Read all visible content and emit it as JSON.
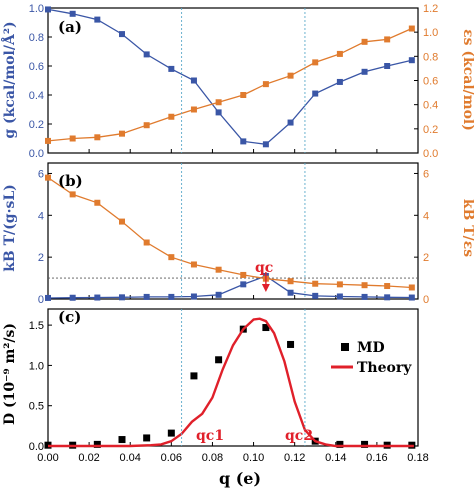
{
  "chart_data": [
    {
      "panel": "(a)",
      "type": "line",
      "x": [
        0.0,
        0.012,
        0.024,
        0.036,
        0.048,
        0.06,
        0.071,
        0.083,
        0.095,
        0.106,
        0.118,
        0.13,
        0.142,
        0.154,
        0.165,
        0.177
      ],
      "series": [
        {
          "axis": "left",
          "color": "#3a56a6",
          "marker": "square",
          "values": [
            0.99,
            0.96,
            0.92,
            0.82,
            0.68,
            0.58,
            0.5,
            0.28,
            0.08,
            0.06,
            0.21,
            0.41,
            0.49,
            0.56,
            0.6,
            0.64
          ]
        },
        {
          "axis": "right",
          "color": "#e07b2e",
          "marker": "square",
          "values": [
            0.1,
            0.12,
            0.13,
            0.16,
            0.23,
            0.3,
            0.36,
            0.42,
            0.48,
            0.57,
            0.64,
            0.75,
            0.82,
            0.92,
            0.94,
            1.03
          ]
        }
      ],
      "ylabel_left": "g (kcal/mol/Å²)",
      "ylabel_right": "εs (kcal/mol)",
      "ylim_left": [
        0,
        1.0
      ],
      "ylim_right": [
        0,
        1.2
      ],
      "yticks_left": [
        "0.0",
        "0.2",
        "0.4",
        "0.6",
        "0.8",
        "1.0"
      ],
      "yticks_right": [
        "0.0",
        "0.2",
        "0.4",
        "0.6",
        "0.8",
        "1.0",
        "1.2"
      ]
    },
    {
      "panel": "(b)",
      "type": "line",
      "x": [
        0.0,
        0.012,
        0.024,
        0.036,
        0.048,
        0.06,
        0.071,
        0.083,
        0.095,
        0.106,
        0.118,
        0.13,
        0.142,
        0.154,
        0.165,
        0.177
      ],
      "series": [
        {
          "axis": "left",
          "color": "#3a56a6",
          "marker": "square",
          "values": [
            0.05,
            0.06,
            0.07,
            0.08,
            0.1,
            0.1,
            0.12,
            0.2,
            0.7,
            1.1,
            0.3,
            0.15,
            0.12,
            0.1,
            0.08,
            0.07
          ]
        },
        {
          "axis": "right",
          "color": "#e07b2e",
          "marker": "square",
          "values": [
            5.8,
            5.0,
            4.6,
            3.7,
            2.7,
            2.0,
            1.65,
            1.4,
            1.15,
            0.97,
            0.85,
            0.73,
            0.7,
            0.66,
            0.62,
            0.55
          ]
        }
      ],
      "ylabel_left": "kB T/(g·sL)",
      "ylabel_right": "kB T/εs",
      "ylim_left": [
        0,
        6.5
      ],
      "ylim_right": [
        0,
        6.5
      ],
      "yticks_left": [
        "0",
        "2",
        "4",
        "6"
      ],
      "yticks_right": [
        "0",
        "2",
        "4",
        "6"
      ],
      "reference_line": 1.0,
      "annotation": "qc"
    },
    {
      "panel": "(c)",
      "type": "scatter",
      "x": [
        0.0,
        0.012,
        0.024,
        0.036,
        0.048,
        0.06,
        0.071,
        0.083,
        0.095,
        0.106,
        0.118,
        0.13,
        0.142,
        0.154,
        0.165,
        0.177
      ],
      "series": [
        {
          "name": "MD",
          "type": "scatter",
          "color": "#000000",
          "values": [
            0.01,
            0.01,
            0.02,
            0.08,
            0.1,
            0.16,
            0.87,
            1.07,
            1.45,
            1.47,
            1.26,
            0.06,
            0.02,
            0.02,
            0.01,
            0.01
          ]
        },
        {
          "name": "Theory",
          "type": "line",
          "color": "#e0202a",
          "x": [
            0.0,
            0.02,
            0.04,
            0.05,
            0.055,
            0.06,
            0.065,
            0.07,
            0.075,
            0.08,
            0.085,
            0.09,
            0.095,
            0.1,
            0.103,
            0.106,
            0.11,
            0.115,
            0.12,
            0.125,
            0.13,
            0.135,
            0.14,
            0.16,
            0.178
          ],
          "values": [
            0.0,
            0.0,
            0.0,
            0.01,
            0.02,
            0.06,
            0.15,
            0.3,
            0.4,
            0.6,
            0.95,
            1.25,
            1.45,
            1.57,
            1.58,
            1.55,
            1.4,
            1.05,
            0.55,
            0.2,
            0.06,
            0.02,
            0.0,
            0.0,
            0.0
          ]
        }
      ],
      "ylabel": "D (10⁻⁹ m²/s)",
      "xlabel": "q (e)",
      "ylim": [
        0,
        1.7
      ],
      "yticks": [
        "0.0",
        "0.5",
        "1.0",
        "1.5"
      ],
      "xlim": [
        0.0,
        0.18
      ],
      "xticks": [
        "0.00",
        "0.02",
        "0.04",
        "0.06",
        "0.08",
        "0.10",
        "0.12",
        "0.14",
        "0.16",
        "0.18"
      ],
      "annotations": [
        "qc1",
        "qc2"
      ],
      "legend": "top-right"
    }
  ],
  "vertical_guides_x": [
    0.065,
    0.125
  ]
}
